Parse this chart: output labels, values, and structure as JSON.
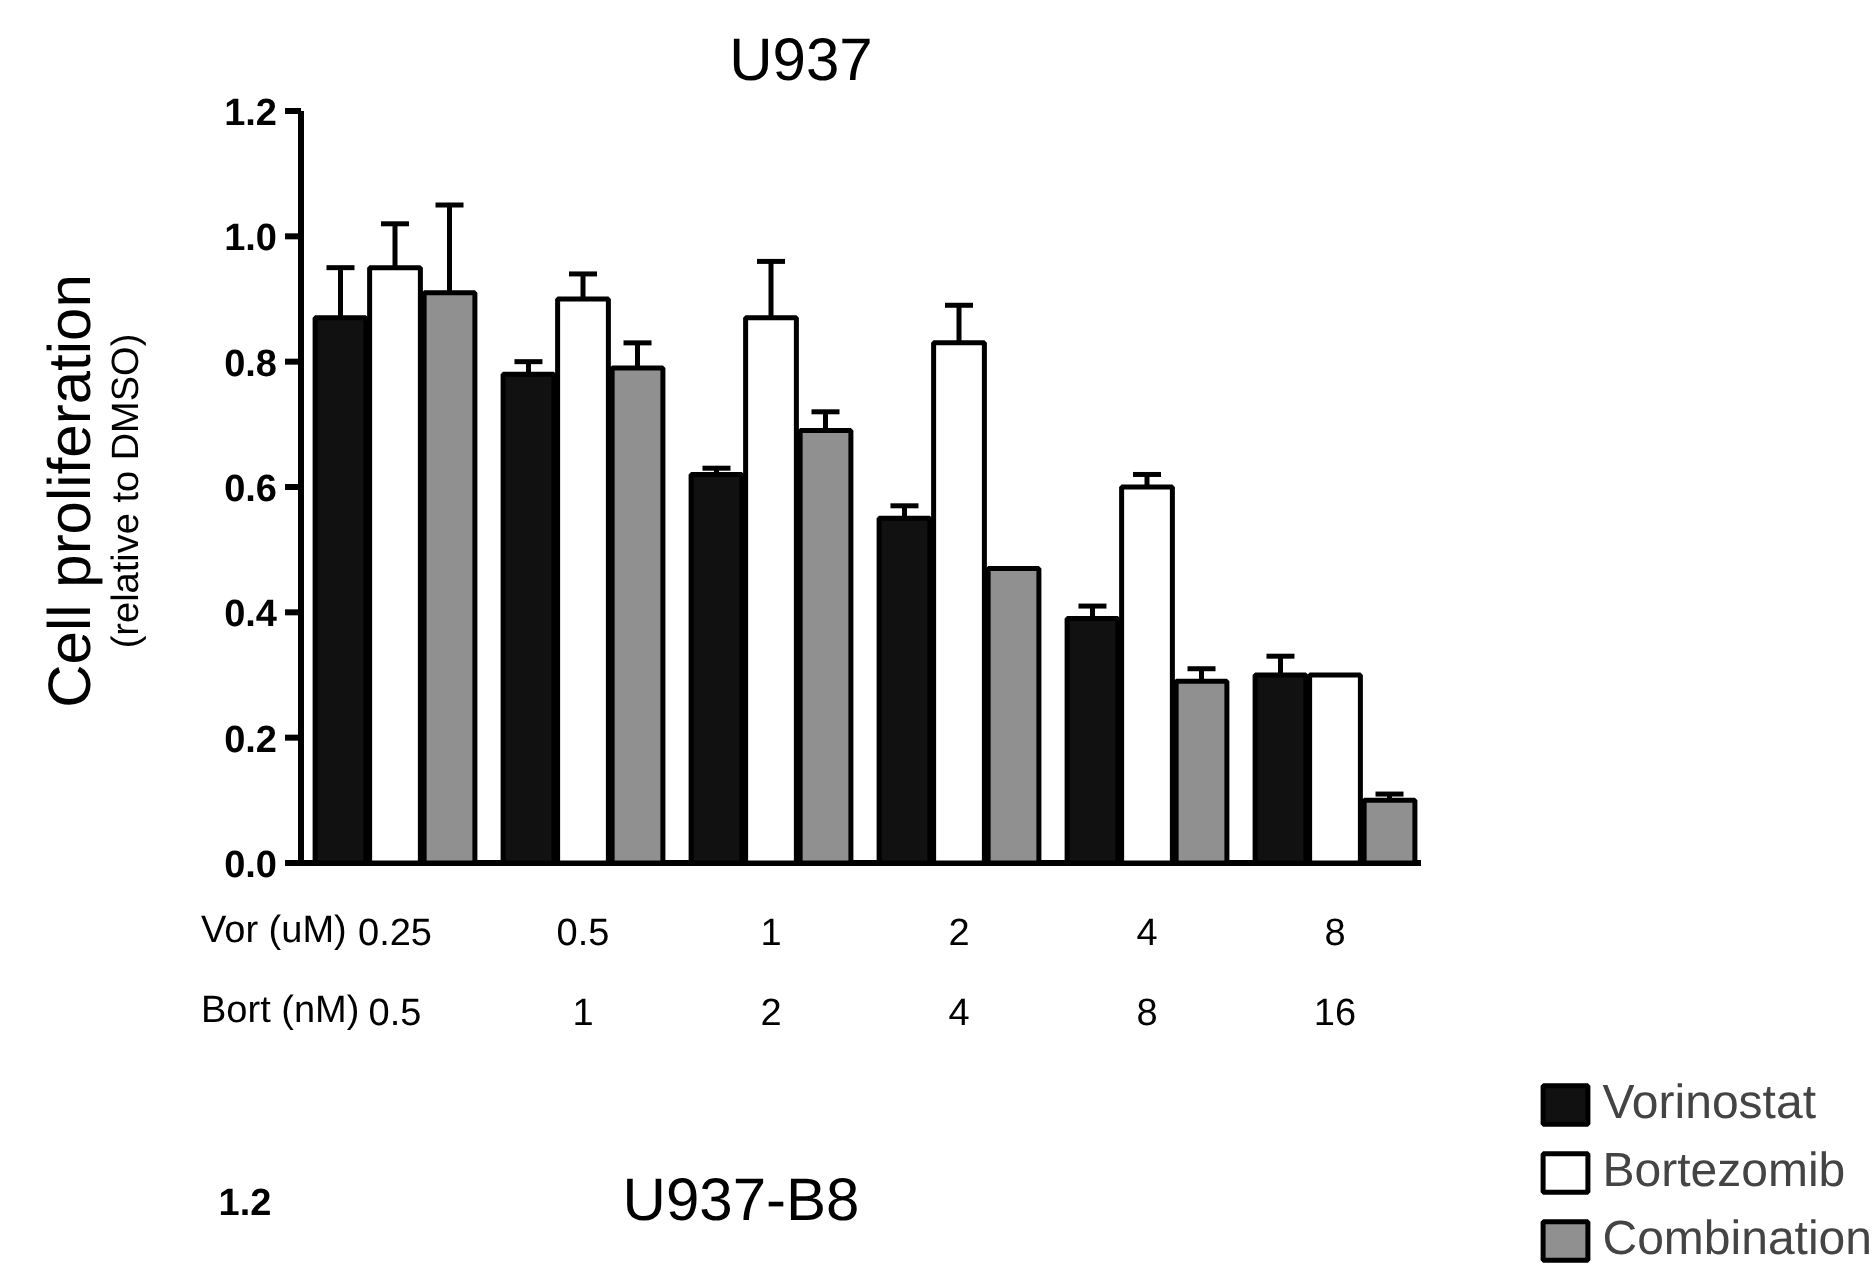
{
  "chart_data": {
    "type": "bar",
    "title": "U937",
    "ylabel": "Cell proliferation\n(relative to DMSO)",
    "xlabel": "Vor (uM)\nBort (nM)",
    "categories": [
      "0.25\n0.5",
      "0.5\n1",
      "1\n2",
      "2\n4",
      "4\n8",
      "8\n16"
    ],
    "series": [
      {
        "name": "Vorinostat",
        "color": "#111111",
        "values": [
          0.87,
          0.78,
          0.62,
          0.55,
          0.39,
          0.3
        ],
        "errors": [
          [
            0.87,
            0.95
          ],
          [
            0.78,
            0.8
          ],
          [
            0.62,
            0.63
          ],
          [
            0.55,
            0.57
          ],
          [
            0.39,
            0.41
          ],
          [
            0.3,
            0.33
          ]
        ]
      },
      {
        "name": "Bortezomib",
        "color": "#ffffff",
        "values": [
          0.95,
          0.9,
          0.87,
          0.83,
          0.6,
          0.3
        ],
        "errors": [
          [
            0.95,
            1.02
          ],
          [
            0.9,
            0.94
          ],
          [
            0.87,
            0.96
          ],
          [
            0.83,
            0.89
          ],
          [
            0.6,
            0.62
          ],
          null
        ]
      },
      {
        "name": "Combination",
        "color": "#909090",
        "values": [
          0.91,
          0.79,
          0.69,
          0.47,
          0.29,
          0.1
        ],
        "errors": [
          [
            0.91,
            1.05
          ],
          [
            0.79,
            0.83
          ],
          [
            0.69,
            0.72
          ],
          null,
          [
            0.29,
            0.31
          ],
          [
            0.1,
            0.11
          ]
        ]
      }
    ],
    "ylim": [
      0,
      1.2
    ],
    "yticks": [
      {
        "value": 0,
        "label": "0.0"
      },
      {
        "value": 0.2,
        "label": "0.2"
      },
      {
        "value": 0.4,
        "label": "0.4"
      },
      {
        "value": 0.6,
        "label": "0.6"
      },
      {
        "value": 0.8,
        "label": "0.8"
      },
      {
        "value": 1.0,
        "label": "1.0"
      },
      {
        "value": 1.2,
        "label": "1.2"
      }
    ],
    "grid": false,
    "legend": "bottom right",
    "annotations": [
      "U937-B8",
      "1.2"
    ]
  }
}
